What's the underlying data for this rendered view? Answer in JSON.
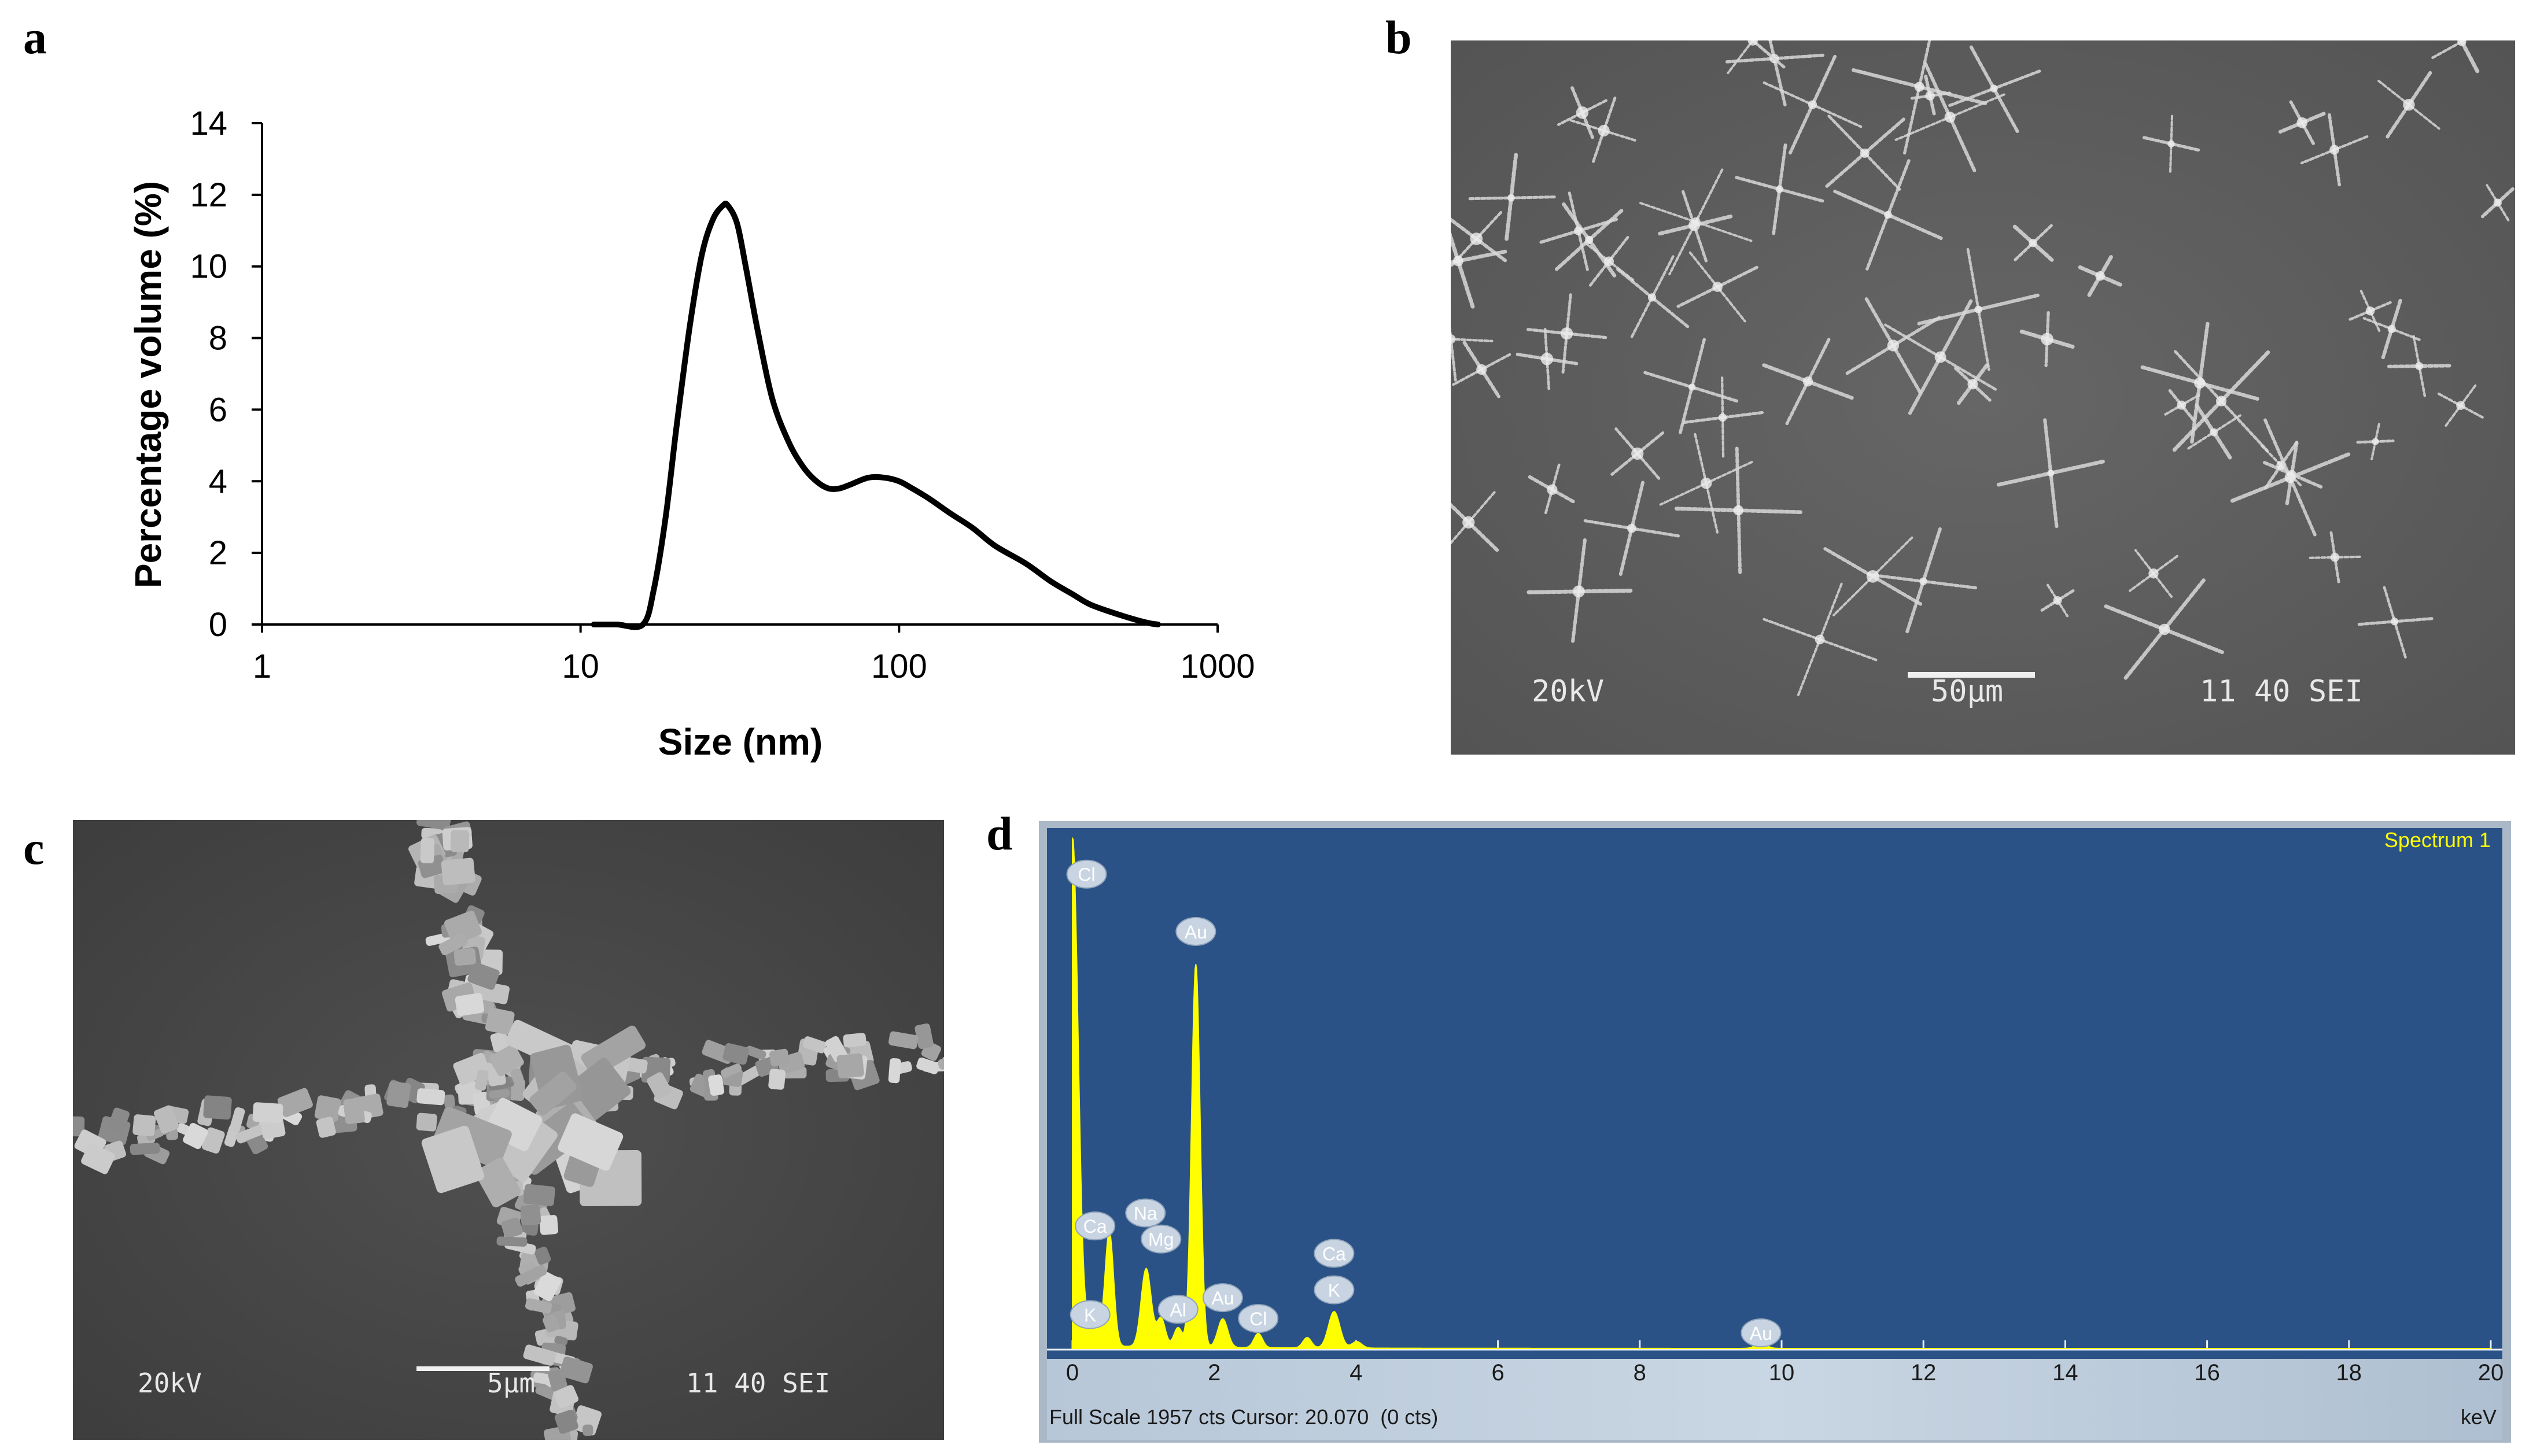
{
  "figure": {
    "panels": [
      {
        "letter": "a"
      },
      {
        "letter": "b"
      },
      {
        "letter": "c"
      },
      {
        "letter": "d"
      }
    ]
  },
  "chart_data": [
    {
      "panel": "a",
      "type": "line",
      "xscale": "log",
      "xlabel": "Size (nm)",
      "ylabel": "Percentage volume (%)",
      "xlim": [
        1,
        1000
      ],
      "ylim": [
        0,
        14
      ],
      "xticks": [
        1,
        10,
        100,
        1000
      ],
      "xtick_labels": [
        "1",
        "10",
        "100",
        "1000"
      ],
      "yticks": [
        0,
        2,
        4,
        6,
        8,
        10,
        12,
        14
      ],
      "ytick_labels": [
        "0",
        "2",
        "4",
        "6",
        "8",
        "10",
        "12",
        "14"
      ],
      "grid": false,
      "series": [
        {
          "x": [
            11,
            13,
            15.7,
            17,
            18.5,
            20,
            22,
            24,
            26,
            28,
            29,
            31,
            33,
            36,
            40,
            45,
            50,
            55,
            60,
            65,
            70,
            80,
            90,
            100,
            110,
            125,
            145,
            170,
            200,
            250,
            300,
            350,
            400,
            500,
            600,
            650
          ],
          "y": [
            0,
            0,
            0,
            1.0,
            3.0,
            5.5,
            8.3,
            10.3,
            11.3,
            11.7,
            11.7,
            11.2,
            10.0,
            8.2,
            6.3,
            5.1,
            4.4,
            4.0,
            3.8,
            3.8,
            3.9,
            4.1,
            4.1,
            4.0,
            3.8,
            3.5,
            3.1,
            2.7,
            2.2,
            1.7,
            1.2,
            0.85,
            0.55,
            0.25,
            0.05,
            0.0
          ],
          "color": "#000000"
        }
      ]
    },
    {
      "panel": "d",
      "type": "line",
      "title": "Spectrum 1",
      "xlabel": "keV",
      "xlim": [
        0,
        20
      ],
      "xticks": [
        0,
        2,
        4,
        6,
        8,
        10,
        12,
        14,
        16,
        18,
        20
      ],
      "xtick_labels": [
        "0",
        "2",
        "4",
        "6",
        "8",
        "10",
        "12",
        "14",
        "16",
        "18",
        "20"
      ],
      "ylim": [
        0,
        1957
      ],
      "footer": "Full Scale 1957 cts Cursor: 20.070  (0 cts)",
      "background_color": "#2a5286",
      "fill_color": "#ffff00",
      "peaks": [
        {
          "keV": 0.0,
          "counts": 1957,
          "width": 0.08
        },
        {
          "keV": 0.26,
          "counts": 90,
          "width": 0.06
        },
        {
          "keV": 0.34,
          "counts": 70,
          "width": 0.06
        },
        {
          "keV": 0.52,
          "counts": 440,
          "width": 0.06
        },
        {
          "keV": 1.04,
          "counts": 300,
          "width": 0.07
        },
        {
          "keV": 1.25,
          "counts": 110,
          "width": 0.06
        },
        {
          "keV": 1.49,
          "counts": 75,
          "width": 0.06
        },
        {
          "keV": 1.74,
          "counts": 1470,
          "width": 0.06
        },
        {
          "keV": 2.12,
          "counts": 110,
          "width": 0.07
        },
        {
          "keV": 2.62,
          "counts": 55,
          "width": 0.06
        },
        {
          "keV": 3.31,
          "counts": 40,
          "width": 0.06
        },
        {
          "keV": 3.69,
          "counts": 140,
          "width": 0.08
        },
        {
          "keV": 4.01,
          "counts": 25,
          "width": 0.07
        },
        {
          "keV": 9.71,
          "counts": 18,
          "width": 0.08
        }
      ],
      "labels": [
        {
          "text": "Cl",
          "keV": 0.2,
          "counts": 1820
        },
        {
          "text": "Ca",
          "keV": 0.32,
          "counts": 470
        },
        {
          "text": "K",
          "keV": 0.25,
          "counts": 130
        },
        {
          "text": "Na",
          "keV": 1.03,
          "counts": 520
        },
        {
          "text": "Mg",
          "keV": 1.25,
          "counts": 420
        },
        {
          "text": "Al",
          "keV": 1.49,
          "counts": 150
        },
        {
          "text": "Au",
          "keV": 2.12,
          "counts": 195
        },
        {
          "text": "Cl",
          "keV": 2.62,
          "counts": 115
        },
        {
          "text": "Ca",
          "keV": 3.69,
          "counts": 365
        },
        {
          "text": "K",
          "keV": 3.69,
          "counts": 225
        },
        {
          "text": "Au",
          "keV": 1.74,
          "counts": 1600
        },
        {
          "text": "Au",
          "keV": 9.71,
          "counts": 60
        }
      ]
    }
  ],
  "micrographs": [
    {
      "panel": "b",
      "voltage": "20kV",
      "scale": "50µm",
      "info": "11 40 SEI",
      "background": "#5d5d5d"
    },
    {
      "panel": "c",
      "voltage": "20kV",
      "scale": "5µm",
      "info": "11 40 SEI",
      "background": "#484848"
    }
  ]
}
